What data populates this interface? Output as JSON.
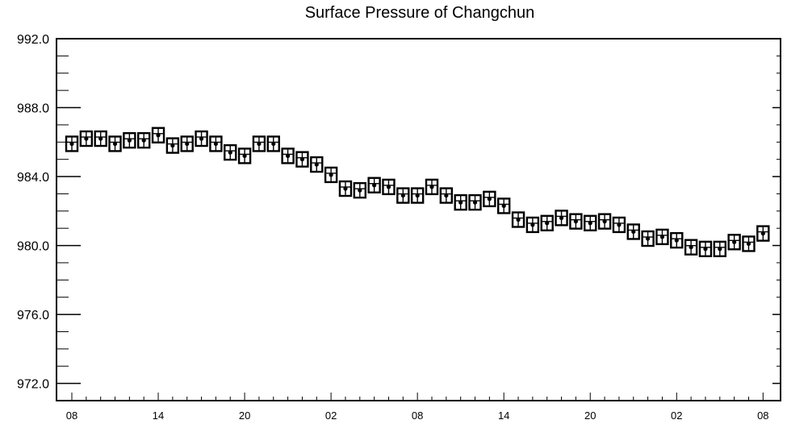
{
  "chart_data": {
    "type": "scatter",
    "title": "Surface Pressure of Changchun",
    "xlabel": "",
    "ylabel": "",
    "ylim": [
      971.0,
      992.0
    ],
    "yticks": [
      "972.0",
      "976.0",
      "980.0",
      "984.0",
      "988.0",
      "992.0"
    ],
    "xticks": [
      "08",
      "14",
      "20",
      "02",
      "08",
      "14",
      "20",
      "02",
      "08"
    ],
    "hours_between_points": 1,
    "grid": false,
    "series": [
      {
        "values": [
          985.9,
          986.2,
          986.2,
          985.9,
          986.1,
          986.1,
          986.4,
          985.8,
          985.9,
          986.2,
          985.9,
          985.4,
          985.2,
          985.9,
          985.9,
          985.2,
          985.0,
          984.7,
          984.1,
          983.3,
          983.2,
          983.5,
          983.4,
          982.9,
          982.9,
          983.4,
          982.9,
          982.5,
          982.5,
          982.7,
          982.3,
          981.5,
          981.2,
          981.3,
          981.6,
          981.4,
          981.3,
          981.4,
          981.2,
          980.8,
          980.4,
          980.5,
          980.3,
          979.9,
          979.8,
          979.8,
          980.2,
          980.1,
          980.7
        ]
      }
    ]
  }
}
